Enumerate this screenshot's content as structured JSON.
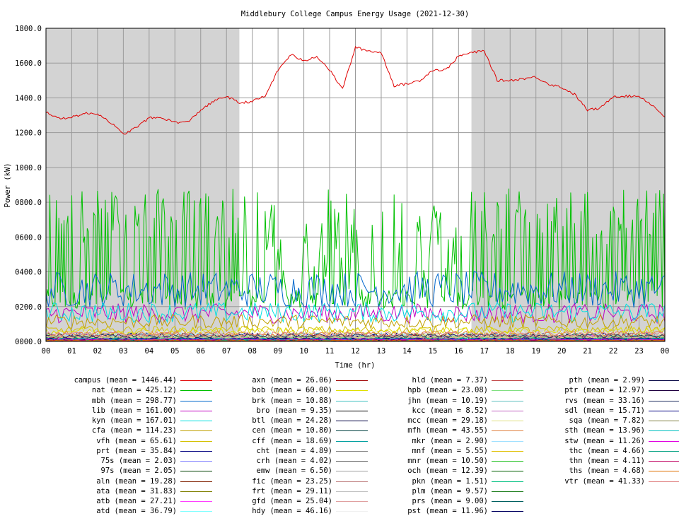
{
  "chart_data": {
    "type": "line",
    "title": "Middlebury College Campus Energy Usage (2021-12-30)",
    "xlabel": "Time (hr)",
    "ylabel": "Power (kW)",
    "xlim": [
      0,
      24
    ],
    "ylim": [
      0,
      1800
    ],
    "x_ticks": [
      "00",
      "01",
      "02",
      "03",
      "04",
      "05",
      "06",
      "07",
      "08",
      "09",
      "10",
      "11",
      "12",
      "13",
      "14",
      "15",
      "16",
      "17",
      "18",
      "19",
      "20",
      "21",
      "22",
      "23",
      "00"
    ],
    "y_ticks": [
      "0000.0",
      "0200.0",
      "0400.0",
      "0600.0",
      "0800.0",
      "1000.0",
      "1200.0",
      "1400.0",
      "1600.0",
      "1800.0"
    ],
    "grid": true,
    "shaded_night_hours": [
      [
        0,
        7.5
      ],
      [
        16.5,
        24
      ]
    ],
    "series": [
      {
        "name": "campus (mean = 1446.44)",
        "color": "#e00000",
        "x": [
          0,
          0.5,
          1,
          1.5,
          2,
          2.5,
          3,
          3.5,
          4,
          4.5,
          5,
          5.5,
          6,
          6.5,
          7,
          7.5,
          8,
          8.5,
          9,
          9.5,
          10,
          10.5,
          11,
          11.5,
          12,
          12.5,
          13,
          13.5,
          14,
          14.5,
          15,
          15.5,
          16,
          16.5,
          17,
          17.5,
          18,
          18.5,
          19,
          19.5,
          20,
          20.5,
          21,
          21.5,
          22,
          22.5,
          23,
          23.5,
          24
        ],
        "values": [
          1320,
          1280,
          1290,
          1310,
          1310,
          1260,
          1190,
          1230,
          1285,
          1285,
          1260,
          1260,
          1330,
          1380,
          1410,
          1370,
          1380,
          1410,
          1560,
          1650,
          1610,
          1640,
          1560,
          1450,
          1690,
          1670,
          1660,
          1470,
          1480,
          1500,
          1560,
          1560,
          1640,
          1660,
          1670,
          1500,
          1500,
          1510,
          1520,
          1480,
          1460,
          1420,
          1330,
          1340,
          1410,
          1410,
          1410,
          1360,
          1290
        ]
      },
      {
        "name": "nat (mean = 425.12)",
        "color": "#00c000"
      },
      {
        "name": "mbh (mean = 298.77)",
        "color": "#0066cc",
        "level": 298.77
      },
      {
        "name": "lib (mean = 161.00)",
        "color": "#c000c0",
        "level": 161.0
      },
      {
        "name": "kyn (mean = 167.01)",
        "color": "#00e0e0",
        "level": 167.01
      },
      {
        "name": "cfa (mean = 114.23)",
        "color": "#c0a000",
        "level": 114.23
      },
      {
        "name": "vfh (mean = 65.61)",
        "color": "#d4c000",
        "level": 65.61
      },
      {
        "name": "prt (mean = 35.84)",
        "color": "#000080",
        "level": 35.84
      },
      {
        "name": "75s (mean = 2.03)",
        "color": "#8080ff",
        "level": 2.03
      },
      {
        "name": "97s (mean = 2.05)",
        "color": "#004000",
        "level": 2.05
      },
      {
        "name": "aln (mean = 19.28)",
        "color": "#802000",
        "level": 19.28
      },
      {
        "name": "ata (mean = 31.83)",
        "color": "#808000",
        "level": 31.83
      },
      {
        "name": "atb (mean = 27.21)",
        "color": "#ff40ff",
        "level": 27.21
      },
      {
        "name": "atd (mean = 36.79)",
        "color": "#80ffff",
        "level": 36.79
      },
      {
        "name": "axn (mean = 26.06)",
        "color": "#a00000",
        "level": 26.06
      },
      {
        "name": "bob (mean = 60.00)",
        "color": "#e0e000",
        "level": 60.0
      },
      {
        "name": "brk (mean = 10.88)",
        "color": "#40c0c0",
        "level": 10.88
      },
      {
        "name": "bro (mean = 9.35)",
        "color": "#000000",
        "level": 9.35
      },
      {
        "name": "btl (mean = 24.28)",
        "color": "#000040",
        "level": 24.28
      },
      {
        "name": "cen (mean = 10.80)",
        "color": "#004040",
        "level": 10.8
      },
      {
        "name": "cff (mean = 18.69)",
        "color": "#00a0a0",
        "level": 18.69
      },
      {
        "name": "cht (mean = 4.89)",
        "color": "#808080",
        "level": 4.89
      },
      {
        "name": "crh (mean = 4.02)",
        "color": "#606060",
        "level": 4.02
      },
      {
        "name": "emw (mean = 6.50)",
        "color": "#a0a0a0",
        "level": 6.5
      },
      {
        "name": "fic (mean = 23.25)",
        "color": "#c08080",
        "level": 23.25
      },
      {
        "name": "frt (mean = 29.11)",
        "color": "#c0c0c0",
        "level": 29.11
      },
      {
        "name": "gfd (mean = 25.04)",
        "color": "#e0a0a0",
        "level": 25.04
      },
      {
        "name": "hdy (mean = 46.16)",
        "color": "#f0f0f0",
        "level": 46.16
      },
      {
        "name": "hld (mean = 7.37)",
        "color": "#c04040",
        "level": 7.37
      },
      {
        "name": "hpb (mean = 23.08)",
        "color": "#80e080",
        "level": 23.08
      },
      {
        "name": "jhn (mean = 10.19)",
        "color": "#60c0c0",
        "level": 10.19
      },
      {
        "name": "kcc (mean = 8.52)",
        "color": "#c060c0",
        "level": 8.52
      },
      {
        "name": "mcc (mean = 29.18)",
        "color": "#e0e080",
        "level": 29.18
      },
      {
        "name": "mfh (mean = 43.55)",
        "color": "#e08040",
        "level": 43.55
      },
      {
        "name": "mkr (mean = 2.90)",
        "color": "#a0e0ff",
        "level": 2.9
      },
      {
        "name": "mnf (mean = 5.55)",
        "color": "#e0c000",
        "level": 5.55
      },
      {
        "name": "mnr (mean = 10.50)",
        "color": "#20c020",
        "level": 10.5
      },
      {
        "name": "och (mean = 12.39)",
        "color": "#006000",
        "level": 12.39
      },
      {
        "name": "pkn (mean = 1.51)",
        "color": "#00c080",
        "level": 1.51
      },
      {
        "name": "plm (mean = 9.57)",
        "color": "#208020",
        "level": 9.57
      },
      {
        "name": "prs (mean = 9.00)",
        "color": "#006060",
        "level": 9.0
      },
      {
        "name": "pst (mean = 11.96)",
        "color": "#000060",
        "level": 11.96
      },
      {
        "name": "pth (mean = 2.99)",
        "color": "#000040",
        "level": 2.99
      },
      {
        "name": "ptr (mean = 12.97)",
        "color": "#200040",
        "level": 12.97
      },
      {
        "name": "rvs (mean = 33.16)",
        "color": "#203060",
        "level": 33.16
      },
      {
        "name": "sdl (mean = 15.71)",
        "color": "#000080",
        "level": 15.71
      },
      {
        "name": "sqa (mean = 7.82)",
        "color": "#808040",
        "level": 7.82
      },
      {
        "name": "sth (mean = 13.96)",
        "color": "#00c0c0",
        "level": 13.96
      },
      {
        "name": "stw (mean = 11.26)",
        "color": "#e000e0",
        "level": 11.26
      },
      {
        "name": "thc (mean = 4.66)",
        "color": "#00a080",
        "level": 4.66
      },
      {
        "name": "thn (mean = 4.11)",
        "color": "#c00060",
        "level": 4.11
      },
      {
        "name": "ths (mean = 4.68)",
        "color": "#e07000",
        "level": 4.68
      },
      {
        "name": "vtr (mean = 41.33)",
        "color": "#e08080",
        "level": 41.33
      }
    ]
  }
}
